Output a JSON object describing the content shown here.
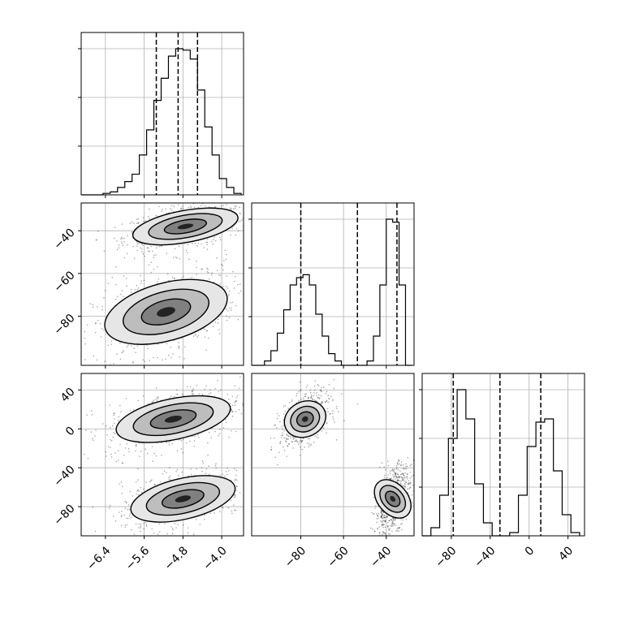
{
  "chart_data": {
    "type": "corner",
    "title": "",
    "grid": true,
    "parameters": [
      {
        "name": "",
        "axis_range": [
          -6.9,
          -3.55
        ],
        "ticks": [
          -6.4,
          -5.6,
          -4.8,
          -4.0
        ],
        "tick_labels": [
          "−6.4",
          "−5.6",
          "−4.8",
          "−4.0"
        ],
        "quantiles": [
          -5.35,
          -4.9,
          -4.5
        ]
      },
      {
        "name": "",
        "axis_range": [
          -103,
          -27
        ],
        "ticks": [
          -80,
          -60,
          -40
        ],
        "tick_labels": [
          "−80",
          "−60",
          "−40"
        ],
        "quantiles": [
          -80,
          -53.5,
          -35
        ]
      },
      {
        "name": "",
        "axis_range": [
          -110,
          57
        ],
        "ticks": [
          -80,
          -40,
          0,
          40
        ],
        "tick_labels": [
          "−80",
          "−40",
          "0",
          "40"
        ],
        "quantiles": [
          -78,
          -30,
          12
        ]
      }
    ],
    "histograms": [
      {
        "param": 0,
        "bin_edges": [
          -6.9,
          -6.75,
          -6.6,
          -6.45,
          -6.3,
          -6.15,
          -6.0,
          -5.85,
          -5.7,
          -5.55,
          -5.4,
          -5.25,
          -5.1,
          -4.95,
          -4.8,
          -4.65,
          -4.5,
          -4.35,
          -4.2,
          -4.05,
          -3.9,
          -3.75,
          -3.6
        ],
        "counts": [
          0,
          0,
          0,
          1,
          2,
          5,
          9,
          14,
          27,
          44,
          64,
          79,
          94,
          99,
          98,
          92,
          71,
          46,
          27,
          11,
          5,
          1
        ]
      },
      {
        "param": 1,
        "bin_edges": [
          -103,
          -100,
          -97,
          -94,
          -91,
          -88,
          -85,
          -82,
          -79,
          -76,
          -73,
          -70,
          -67,
          -64,
          -61,
          -58,
          -55,
          -52,
          -49,
          -46,
          -43,
          -40,
          -37,
          -34,
          -31,
          -28
        ],
        "counts": [
          0,
          0,
          3,
          10,
          22,
          38,
          55,
          60,
          62,
          55,
          35,
          20,
          8,
          3,
          0,
          0,
          0,
          0,
          3,
          20,
          55,
          100,
          98,
          55,
          0
        ]
      },
      {
        "param": 2,
        "bin_edges": [
          -110,
          -101,
          -92,
          -83,
          -74,
          -65,
          -56,
          -47,
          -38,
          -29,
          -20,
          -11,
          -2,
          7,
          16,
          25,
          34,
          43,
          52
        ],
        "counts": [
          0,
          5,
          25,
          60,
          90,
          72,
          32,
          8,
          0,
          0,
          2,
          25,
          55,
          70,
          72,
          40,
          13,
          2
        ]
      }
    ],
    "scatter_panels": [
      {
        "x_param": 0,
        "y_param": 1,
        "clusters": [
          {
            "center": [
              -4.75,
              -38
            ],
            "sd": [
              0.55,
              5
            ]
          },
          {
            "center": [
              -5.15,
              -78
            ],
            "sd": [
              0.65,
              9
            ]
          }
        ]
      },
      {
        "x_param": 0,
        "y_param": 2,
        "clusters": [
          {
            "center": [
              -5.0,
              10
            ],
            "sd": [
              0.6,
              14
            ]
          },
          {
            "center": [
              -4.8,
              -72
            ],
            "sd": [
              0.55,
              14
            ]
          }
        ]
      },
      {
        "x_param": 1,
        "y_param": 2,
        "clusters": [
          {
            "center": [
              -78,
              10
            ],
            "sd": [
              5,
              12
            ]
          },
          {
            "center": [
              -37,
              -72
            ],
            "sd": [
              3.5,
              15
            ]
          }
        ]
      }
    ]
  }
}
